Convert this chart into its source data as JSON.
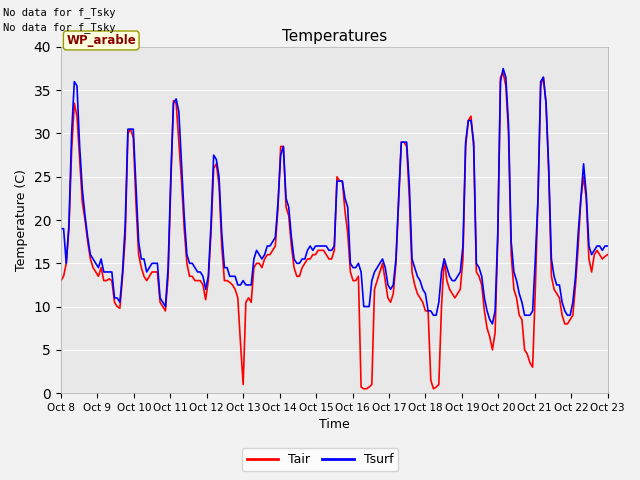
{
  "title": "Temperatures",
  "xlabel": "Time",
  "ylabel": "Temperature (C)",
  "annotation_text1": "No data for f_Tsky",
  "annotation_text2": "No data for f_Tsky",
  "legend_label": "WP_arable",
  "line1_label": "Tair",
  "line2_label": "Tsurf",
  "line1_color": "#ff0000",
  "line2_color": "#0000ff",
  "ylim": [
    0,
    40
  ],
  "xlim": [
    0,
    15
  ],
  "ax_bg": "#e8e8e8",
  "fig_bg": "#f2f2f2",
  "xtick_labels": [
    "Oct 8",
    "Oct 9",
    "Oct 10",
    "Oct 11",
    "Oct 12",
    "Oct 13",
    "Oct 14",
    "Oct 15",
    "Oct 16",
    "Oct 17",
    "Oct 18",
    "Oct 19",
    "Oct 20",
    "Oct 21",
    "Oct 22",
    "Oct 23"
  ],
  "tair": [
    13.0,
    13.5,
    15.0,
    19.0,
    28.0,
    33.5,
    32.0,
    27.0,
    22.0,
    20.0,
    17.5,
    15.5,
    14.5,
    14.0,
    13.5,
    14.5,
    13.0,
    13.0,
    13.2,
    13.0,
    10.5,
    10.0,
    9.8,
    13.5,
    18.0,
    30.0,
    30.5,
    29.5,
    22.0,
    16.0,
    14.5,
    13.5,
    13.0,
    13.5,
    14.0,
    14.0,
    14.0,
    10.5,
    10.0,
    9.5,
    13.5,
    24.0,
    33.8,
    33.5,
    29.0,
    24.5,
    19.0,
    15.0,
    13.5,
    13.5,
    13.0,
    13.0,
    13.0,
    12.5,
    10.8,
    13.0,
    18.5,
    26.0,
    26.5,
    24.0,
    17.0,
    13.0,
    13.0,
    12.8,
    12.5,
    12.0,
    11.0,
    5.8,
    1.0,
    10.5,
    11.0,
    10.5,
    14.5,
    15.0,
    15.0,
    14.5,
    15.5,
    16.0,
    16.0,
    16.5,
    17.0,
    21.5,
    28.5,
    28.5,
    21.5,
    20.5,
    17.0,
    14.5,
    13.5,
    13.5,
    14.5,
    15.0,
    15.5,
    15.5,
    16.0,
    16.0,
    16.5,
    16.5,
    16.5,
    16.0,
    15.5,
    15.5,
    16.5,
    25.0,
    24.5,
    24.5,
    21.0,
    18.5,
    14.0,
    13.0,
    13.0,
    13.5,
    0.7,
    0.5,
    0.5,
    0.7,
    1.0,
    12.0,
    13.0,
    14.0,
    15.0,
    13.0,
    11.0,
    10.5,
    11.5,
    15.0,
    22.0,
    29.0,
    29.0,
    28.5,
    22.5,
    14.0,
    12.5,
    11.5,
    11.0,
    10.5,
    9.5,
    9.5,
    1.5,
    0.5,
    0.7,
    1.0,
    10.0,
    15.5,
    13.0,
    12.0,
    11.5,
    11.0,
    11.5,
    12.0,
    15.5,
    28.5,
    31.5,
    32.0,
    28.5,
    14.0,
    13.5,
    12.5,
    9.5,
    7.5,
    6.5,
    5.0,
    7.0,
    18.0,
    36.5,
    37.0,
    35.5,
    30.0,
    16.0,
    12.0,
    11.0,
    9.0,
    8.5,
    5.0,
    4.5,
    3.5,
    3.0,
    12.0,
    22.5,
    35.5,
    36.5,
    33.5,
    25.5,
    13.5,
    12.0,
    11.5,
    11.0,
    9.0,
    8.0,
    8.0,
    8.5,
    9.0,
    12.5,
    17.0,
    22.5,
    25.0,
    22.5,
    15.5,
    14.0,
    16.0,
    16.5,
    16.0,
    15.5,
    15.8,
    16.0
  ],
  "tsurf": [
    19.0,
    19.0,
    15.0,
    19.5,
    30.0,
    36.0,
    35.5,
    28.5,
    23.5,
    20.5,
    18.0,
    16.0,
    15.5,
    15.0,
    14.5,
    15.5,
    14.0,
    14.0,
    14.0,
    14.0,
    11.0,
    11.0,
    10.5,
    14.0,
    19.5,
    30.5,
    30.5,
    30.5,
    24.0,
    17.5,
    15.5,
    15.5,
    14.0,
    14.5,
    15.0,
    15.0,
    15.0,
    11.0,
    10.5,
    10.0,
    14.5,
    25.0,
    33.5,
    34.0,
    32.5,
    26.5,
    20.5,
    16.0,
    15.0,
    15.0,
    14.5,
    14.0,
    14.0,
    13.5,
    12.0,
    13.5,
    19.5,
    27.5,
    27.0,
    25.0,
    18.5,
    14.5,
    14.5,
    13.5,
    13.5,
    13.5,
    12.5,
    12.5,
    13.0,
    12.5,
    12.5,
    12.5,
    15.5,
    16.5,
    16.0,
    15.5,
    16.0,
    17.0,
    17.0,
    17.5,
    18.0,
    22.0,
    27.5,
    28.5,
    22.5,
    21.5,
    18.0,
    15.5,
    15.0,
    15.0,
    15.5,
    15.5,
    16.5,
    17.0,
    16.5,
    17.0,
    17.0,
    17.0,
    17.0,
    17.0,
    16.5,
    16.5,
    17.0,
    24.5,
    24.5,
    24.5,
    22.5,
    21.5,
    15.0,
    14.5,
    14.5,
    15.0,
    14.0,
    10.0,
    10.0,
    10.0,
    13.0,
    14.0,
    14.5,
    15.0,
    15.5,
    14.5,
    12.5,
    12.0,
    12.5,
    15.5,
    22.5,
    29.0,
    29.0,
    29.0,
    24.0,
    15.5,
    14.5,
    13.5,
    13.0,
    12.0,
    11.5,
    9.5,
    9.5,
    9.0,
    9.0,
    10.5,
    14.0,
    15.5,
    14.5,
    13.5,
    13.0,
    13.0,
    13.5,
    14.0,
    17.0,
    29.0,
    31.5,
    31.5,
    29.0,
    15.0,
    14.5,
    13.5,
    11.0,
    9.5,
    8.5,
    8.0,
    9.5,
    18.5,
    36.0,
    37.5,
    36.5,
    31.0,
    17.5,
    14.0,
    13.0,
    11.5,
    10.5,
    9.0,
    9.0,
    9.0,
    9.5,
    15.5,
    22.5,
    36.0,
    36.5,
    33.5,
    26.0,
    15.5,
    13.5,
    12.5,
    12.5,
    10.5,
    9.5,
    9.0,
    9.0,
    10.5,
    13.5,
    18.5,
    22.5,
    26.5,
    23.0,
    17.0,
    16.0,
    16.5,
    17.0,
    17.0,
    16.5,
    17.0,
    17.0
  ]
}
